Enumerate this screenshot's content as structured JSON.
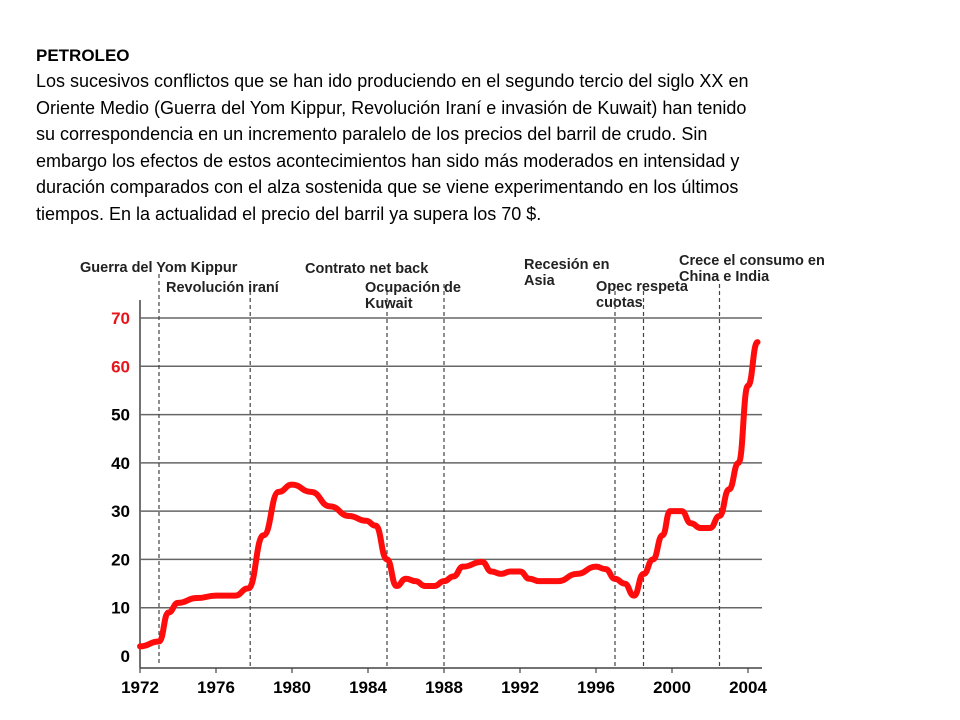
{
  "heading": "PETROLEO",
  "paragraph": "Los sucesivos conflictos que se han ido produciendo en el segundo tercio del siglo XX en Oriente Medio (Guerra del Yom Kippur, Revolución Iraní e invasión de Kuwait) han tenido su correspondencia en un incremento paralelo de los precios del barril de crudo. Sin embargo los efectos de estos acontecimientos han sido más moderados en intensidad y duración comparados con el alza sostenida que se viene experimentando en los últimos tiempos. En la actualidad el precio del barril ya supera los 70 $.",
  "paragraph_lines": [
    "Los sucesivos conflictos que se han ido produciendo en el segundo tercio del siglo XX en",
    "Oriente Medio (Guerra del Yom Kippur, Revolución Iraní e invasión de Kuwait) han tenido",
    "su correspondencia en un incremento paralelo de los precios del barril de crudo. Sin",
    "embargo los efectos de estos acontecimientos han sido más moderados en intensidad y",
    "duración comparados con el alza sostenida que se viene experimentando en los últimos",
    "tiempos. En la actualidad el precio del barril ya supera los 70 $."
  ],
  "chart_data": {
    "type": "line",
    "title": "",
    "xlabel": "",
    "ylabel": "",
    "xlim": [
      1972,
      2004.5
    ],
    "ylim": [
      0,
      70
    ],
    "grid": true,
    "x_ticks": [
      "1972",
      "1976",
      "1980",
      "1984",
      "1988",
      "1992",
      "1996",
      "2000",
      "2004"
    ],
    "y_ticks": [
      "0",
      "10",
      "20",
      "30",
      "40",
      "50",
      "60",
      "70"
    ],
    "y_tick_colors": [
      "#000000",
      "#000000",
      "#000000",
      "#000000",
      "#000000",
      "#000000",
      "#e8141c",
      "#e8141c"
    ],
    "line_color": "#ff0d0d",
    "series": [
      {
        "x": [
          1972,
          1973,
          1973.5,
          1974,
          1975,
          1976,
          1977,
          1977.7,
          1978.5,
          1979.3,
          1980,
          1981,
          1982,
          1983,
          1983.9,
          1984.4,
          1985,
          1985.5,
          1986,
          1986.5,
          1987,
          1987.5,
          1988,
          1988.5,
          1989,
          1990,
          1990.5,
          1991,
          1991.5,
          1992,
          1992.5,
          1993,
          1994,
          1995,
          1996,
          1996.5,
          1997,
          1997.5,
          1998,
          1998.5,
          1999,
          1999.5,
          1999.9,
          2000.5,
          2001,
          2001.5,
          2002,
          2002.5,
          2003,
          2003.5,
          2004,
          2004.5
        ],
        "y": [
          2,
          3,
          9,
          11,
          12,
          12.5,
          12.5,
          14,
          25,
          34,
          35.5,
          34,
          31,
          29,
          28,
          27,
          20,
          14.5,
          16,
          15.5,
          14.5,
          14.5,
          15.5,
          16.5,
          18.5,
          19.5,
          17.5,
          17,
          17.5,
          17.5,
          16,
          15.5,
          15.5,
          17,
          18.5,
          18,
          16,
          15,
          12.5,
          17,
          20,
          25,
          30,
          30,
          27.5,
          26.5,
          26.5,
          29,
          34.5,
          40,
          56,
          65
        ]
      }
    ],
    "annotations": [
      {
        "lines": [
          "Guerra del Yom Kippur"
        ],
        "year": 1973
      },
      {
        "lines": [
          "Revolución iraní"
        ],
        "year": 1977.8
      },
      {
        "lines": [
          "Contrato net back"
        ],
        "year": 1985
      },
      {
        "lines": [
          "Ocupación de",
          "Kuwait"
        ],
        "year": 1988
      },
      {
        "lines": [
          "Recesión en",
          "Asia"
        ],
        "year": 1997
      },
      {
        "lines": [
          "Opec respeta",
          "cuotas"
        ],
        "year": 1998.5
      },
      {
        "lines": [
          "Crece el consumo en",
          "China e India"
        ],
        "year": 2002.5
      }
    ]
  }
}
